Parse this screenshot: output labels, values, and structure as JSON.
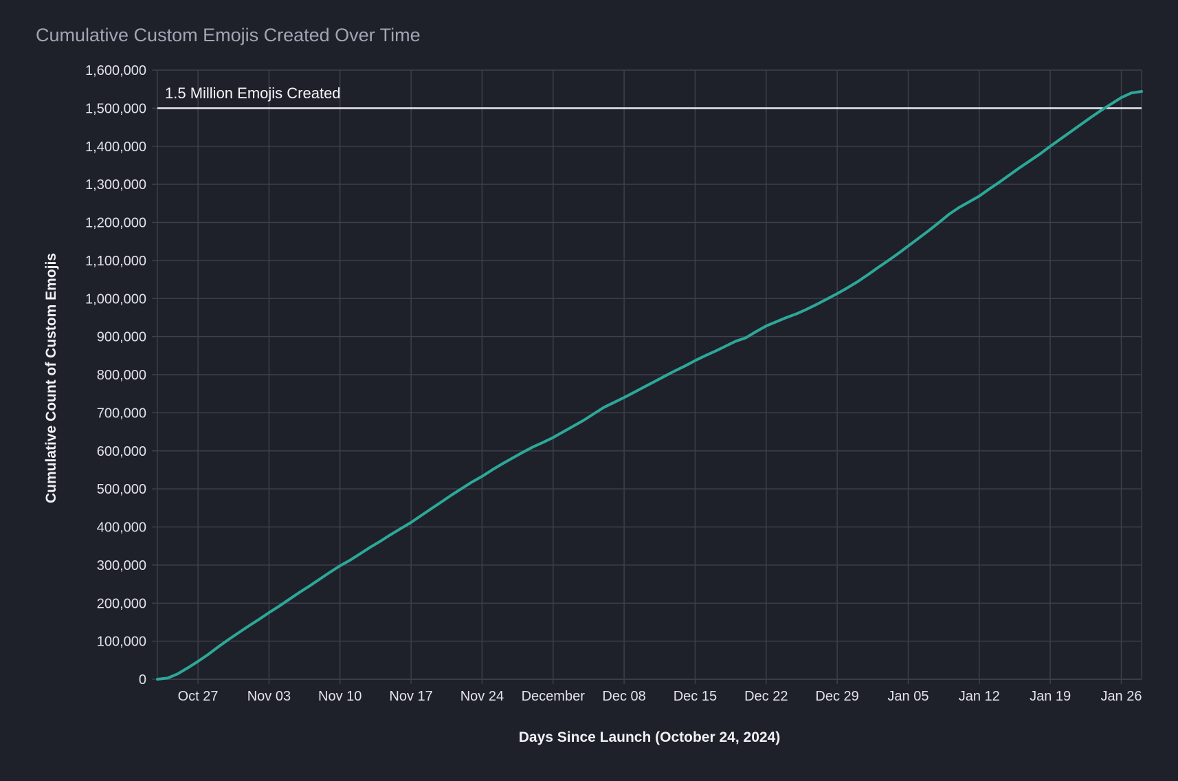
{
  "title": "Cumulative Custom Emojis Created Over Time",
  "colors": {
    "background": "#1f212a",
    "grid": "#3e404d",
    "series_line": "#2ca899",
    "reference_line": "#e8e8f0",
    "title_text": "#a2a6b4",
    "tick_text": "#e2e3ea",
    "axis_title_text": "#f0f1f5",
    "annotation_text": "#f4f4f8"
  },
  "chart_data": {
    "type": "line",
    "title": "Cumulative Custom Emojis Created Over Time",
    "xlabel": "Days Since Launch (October 24, 2024)",
    "ylabel": "Cumulative Count of Custom Emojis",
    "grid": true,
    "legend": false,
    "x_domain": [
      "2024-10-23",
      "2025-01-28"
    ],
    "ylim": [
      0,
      1600000
    ],
    "x_ticks": [
      {
        "date": "2024-10-27",
        "label": "Oct 27"
      },
      {
        "date": "2024-11-03",
        "label": "Nov 03"
      },
      {
        "date": "2024-11-10",
        "label": "Nov 10"
      },
      {
        "date": "2024-11-17",
        "label": "Nov 17"
      },
      {
        "date": "2024-11-24",
        "label": "Nov 24"
      },
      {
        "date": "2024-12-01",
        "label": "December"
      },
      {
        "date": "2024-12-08",
        "label": "Dec 08"
      },
      {
        "date": "2024-12-15",
        "label": "Dec 15"
      },
      {
        "date": "2024-12-22",
        "label": "Dec 22"
      },
      {
        "date": "2024-12-29",
        "label": "Dec 29"
      },
      {
        "date": "2025-01-05",
        "label": "Jan 05"
      },
      {
        "date": "2025-01-12",
        "label": "Jan 12"
      },
      {
        "date": "2025-01-19",
        "label": "Jan 19"
      },
      {
        "date": "2025-01-26",
        "label": "Jan 26"
      }
    ],
    "y_ticks": [
      0,
      100000,
      200000,
      300000,
      400000,
      500000,
      600000,
      700000,
      800000,
      900000,
      1000000,
      1100000,
      1200000,
      1300000,
      1400000,
      1500000,
      1600000
    ],
    "y_tick_labels": [
      "0",
      "100,000",
      "200,000",
      "300,000",
      "400,000",
      "500,000",
      "600,000",
      "700,000",
      "800,000",
      "900,000",
      "1,000,000",
      "1,100,000",
      "1,200,000",
      "1,300,000",
      "1,400,000",
      "1,500,000",
      "1,600,000"
    ],
    "annotation": {
      "text": "1.5 Million Emojis Created",
      "value": 1500000
    },
    "series": [
      {
        "name": "Cumulative Custom Emojis",
        "points": [
          [
            "2024-10-23",
            0
          ],
          [
            "2024-10-24",
            3000
          ],
          [
            "2024-10-25",
            14000
          ],
          [
            "2024-10-26",
            30000
          ],
          [
            "2024-10-27",
            47000
          ],
          [
            "2024-10-28",
            65000
          ],
          [
            "2024-10-29",
            85000
          ],
          [
            "2024-10-30",
            104000
          ],
          [
            "2024-10-31",
            122000
          ],
          [
            "2024-11-01",
            140000
          ],
          [
            "2024-11-02",
            157000
          ],
          [
            "2024-11-03",
            175000
          ],
          [
            "2024-11-04",
            192000
          ],
          [
            "2024-11-05",
            210000
          ],
          [
            "2024-11-06",
            228000
          ],
          [
            "2024-11-07",
            245000
          ],
          [
            "2024-11-08",
            263000
          ],
          [
            "2024-11-09",
            281000
          ],
          [
            "2024-11-10",
            298000
          ],
          [
            "2024-11-11",
            313000
          ],
          [
            "2024-11-12",
            330000
          ],
          [
            "2024-11-13",
            347000
          ],
          [
            "2024-11-14",
            363000
          ],
          [
            "2024-11-15",
            380000
          ],
          [
            "2024-11-16",
            396000
          ],
          [
            "2024-11-17",
            412000
          ],
          [
            "2024-11-18",
            430000
          ],
          [
            "2024-11-19",
            448000
          ],
          [
            "2024-11-20",
            466000
          ],
          [
            "2024-11-21",
            484000
          ],
          [
            "2024-11-22",
            501000
          ],
          [
            "2024-11-23",
            518000
          ],
          [
            "2024-11-24",
            533000
          ],
          [
            "2024-11-25",
            550000
          ],
          [
            "2024-11-26",
            566000
          ],
          [
            "2024-11-27",
            581000
          ],
          [
            "2024-11-28",
            596000
          ],
          [
            "2024-11-29",
            610000
          ],
          [
            "2024-11-30",
            622000
          ],
          [
            "2024-12-01",
            635000
          ],
          [
            "2024-12-02",
            650000
          ],
          [
            "2024-12-03",
            665000
          ],
          [
            "2024-12-04",
            680000
          ],
          [
            "2024-12-05",
            697000
          ],
          [
            "2024-12-06",
            714000
          ],
          [
            "2024-12-07",
            727000
          ],
          [
            "2024-12-08",
            740000
          ],
          [
            "2024-12-09",
            754000
          ],
          [
            "2024-12-10",
            768000
          ],
          [
            "2024-12-11",
            782000
          ],
          [
            "2024-12-12",
            796000
          ],
          [
            "2024-12-13",
            810000
          ],
          [
            "2024-12-14",
            823000
          ],
          [
            "2024-12-15",
            837000
          ],
          [
            "2024-12-16",
            850000
          ],
          [
            "2024-12-17",
            862000
          ],
          [
            "2024-12-18",
            875000
          ],
          [
            "2024-12-19",
            888000
          ],
          [
            "2024-12-20",
            897000
          ],
          [
            "2024-12-21",
            913000
          ],
          [
            "2024-12-22",
            928000
          ],
          [
            "2024-12-23",
            939000
          ],
          [
            "2024-12-24",
            950000
          ],
          [
            "2024-12-25",
            960000
          ],
          [
            "2024-12-26",
            972000
          ],
          [
            "2024-12-27",
            985000
          ],
          [
            "2024-12-28",
            999000
          ],
          [
            "2024-12-29",
            1013000
          ],
          [
            "2024-12-30",
            1028000
          ],
          [
            "2024-12-31",
            1044000
          ],
          [
            "2025-01-01",
            1062000
          ],
          [
            "2025-01-02",
            1081000
          ],
          [
            "2025-01-03",
            1099000
          ],
          [
            "2025-01-04",
            1118000
          ],
          [
            "2025-01-05",
            1138000
          ],
          [
            "2025-01-06",
            1158000
          ],
          [
            "2025-01-07",
            1178000
          ],
          [
            "2025-01-08",
            1199000
          ],
          [
            "2025-01-09",
            1221000
          ],
          [
            "2025-01-10",
            1239000
          ],
          [
            "2025-01-11",
            1254000
          ],
          [
            "2025-01-12",
            1269000
          ],
          [
            "2025-01-13",
            1288000
          ],
          [
            "2025-01-14",
            1306000
          ],
          [
            "2025-01-15",
            1325000
          ],
          [
            "2025-01-16",
            1344000
          ],
          [
            "2025-01-17",
            1362000
          ],
          [
            "2025-01-18",
            1380000
          ],
          [
            "2025-01-19",
            1400000
          ],
          [
            "2025-01-20",
            1419000
          ],
          [
            "2025-01-21",
            1438000
          ],
          [
            "2025-01-22",
            1457000
          ],
          [
            "2025-01-23",
            1476000
          ],
          [
            "2025-01-24",
            1494000
          ],
          [
            "2025-01-25",
            1511000
          ],
          [
            "2025-01-26",
            1528000
          ],
          [
            "2025-01-27",
            1540000
          ],
          [
            "2025-01-28",
            1544000
          ]
        ]
      }
    ]
  }
}
